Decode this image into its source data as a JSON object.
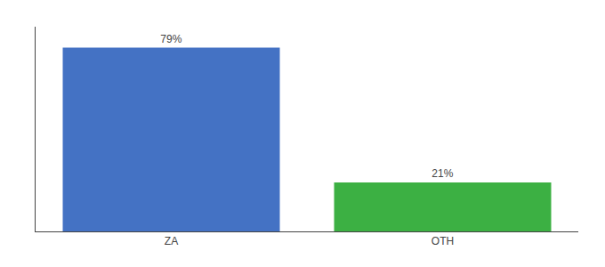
{
  "chart_data": {
    "type": "bar",
    "categories": [
      "ZA",
      "OTH"
    ],
    "values": [
      79,
      21
    ],
    "value_labels": [
      "79%",
      "21%"
    ],
    "colors": [
      "#4472c4",
      "#3cb043"
    ],
    "data_labels": true,
    "ylim": [
      0,
      88
    ],
    "tick_labels": "x",
    "grid": false
  }
}
